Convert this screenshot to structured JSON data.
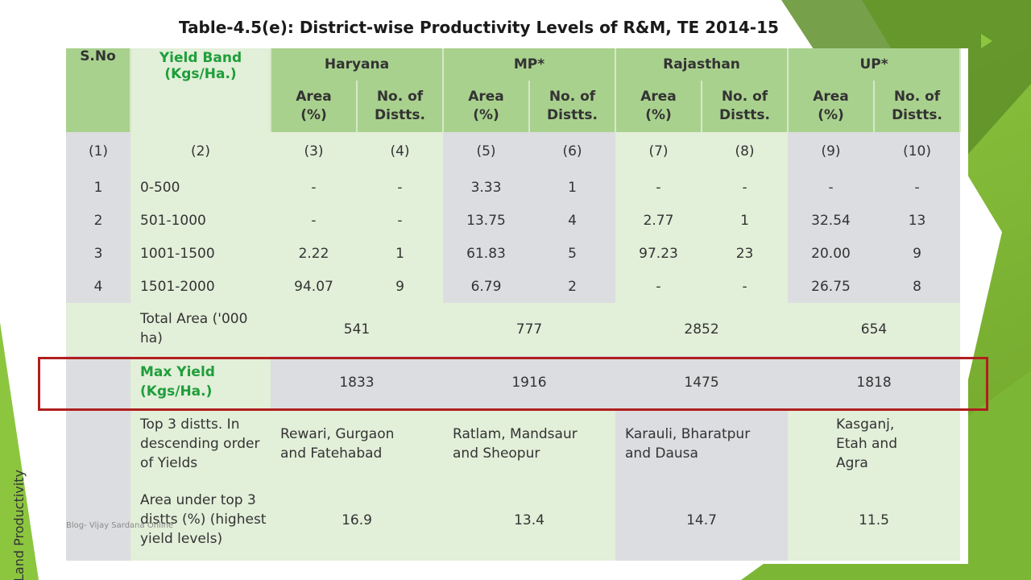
{
  "title": "Table-4.5(e): District-wise Productivity Levels of R&M, TE 2014-15",
  "headers": {
    "sno": "S.No",
    "yield_band": "Yield Band (Kgs/Ha.)",
    "states": [
      "Haryana",
      "MP*",
      "Rajasthan",
      "UP*"
    ],
    "area": "Area (%)",
    "distts": "No. of Distts."
  },
  "col_numbers": [
    "(1)",
    "(2)",
    "(3)",
    "(4)",
    "(5)",
    "(6)",
    "(7)",
    "(8)",
    "(9)",
    "(10)"
  ],
  "rows": [
    {
      "sno": "1",
      "band": "0-500",
      "cells": [
        "-",
        "-",
        "3.33",
        "1",
        "-",
        "-",
        "-",
        "-"
      ]
    },
    {
      "sno": "2",
      "band": "501-1000",
      "cells": [
        "-",
        "-",
        "13.75",
        "4",
        "2.77",
        "1",
        "32.54",
        "13"
      ]
    },
    {
      "sno": "3",
      "band": "1001-1500",
      "cells": [
        "2.22",
        "1",
        "61.83",
        "5",
        "97.23",
        "23",
        "20.00",
        "9"
      ]
    },
    {
      "sno": "4",
      "band": "1501-2000",
      "cells": [
        "94.07",
        "9",
        "6.79",
        "2",
        "-",
        "-",
        "26.75",
        "8"
      ]
    }
  ],
  "total_area": {
    "label": "Total Area ('000 ha)",
    "values": [
      "541",
      "777",
      "2852",
      "654"
    ]
  },
  "max_yield": {
    "label": "Max Yield (Kgs/Ha.)",
    "values": [
      "1833",
      "1916",
      "1475",
      "1818"
    ]
  },
  "top3": {
    "label": "Top 3 distts. In descending order of Yields",
    "values": [
      "Rewari, Gurgaon and Fatehabad",
      "Ratlam, Mandsaur and Sheopur",
      "Karauli, Bharatpur and Dausa",
      "Kasganj, Etah and Agra"
    ]
  },
  "area_top3": {
    "label": "Area under top 3 distts (%) (highest yield levels)",
    "values": [
      "16.9",
      "13.4",
      "14.7",
      "11.5"
    ]
  },
  "side_label": "Land Productivity",
  "watermark": "Blog- Vijay Sardana Online",
  "colors": {
    "header_green": "#a9d18e",
    "light_green": "#e2efd9",
    "grey": "#dcdde0",
    "highlight_red": "#b01e1e",
    "text_green": "#1e9e3a"
  }
}
